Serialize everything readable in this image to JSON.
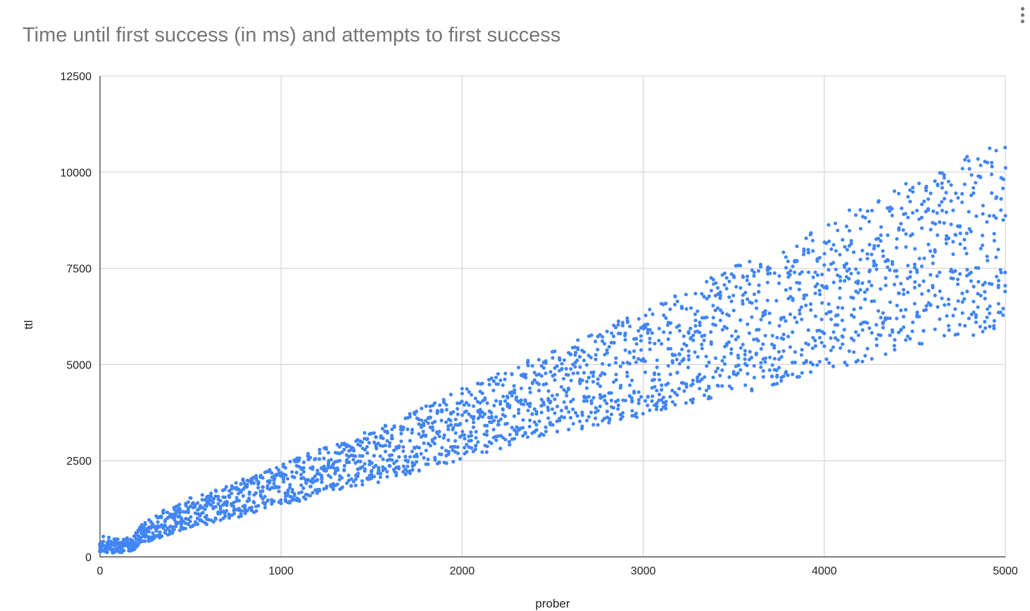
{
  "chart": {
    "title": "Time until first success (in ms) and attempts to first success",
    "menu_icon": "more-vert-icon"
  },
  "chart_data": {
    "type": "scatter",
    "title": "Time until first success (in ms) and attempts to first success",
    "xlabel": "prober",
    "ylabel": "ttl",
    "xlim": [
      0,
      5000
    ],
    "ylim": [
      0,
      12500
    ],
    "xticks": [
      "0",
      "1000",
      "2000",
      "3000",
      "4000",
      "5000"
    ],
    "yticks": [
      "0",
      "2500",
      "5000",
      "7500",
      "10000",
      "12500"
    ],
    "grid": true,
    "legend": "none",
    "series": [
      {
        "color": "#4285f4",
        "description_of_band": "points follow a widening band; lower edge ≈ 1.2·x, upper edge ≈ 2.2·x",
        "x": [
          0,
          10,
          20,
          30,
          40,
          50,
          60,
          80,
          100,
          120,
          150,
          180,
          200,
          220,
          250,
          280,
          300,
          330,
          360,
          400,
          430,
          460,
          500,
          540,
          580,
          600,
          640,
          680,
          700,
          740,
          780,
          800,
          850,
          900,
          950,
          1000,
          1050,
          1100,
          1150,
          1200,
          1250,
          1300,
          1350,
          1400,
          1450,
          1500,
          1550,
          1600,
          1650,
          1700,
          1750,
          1800,
          1850,
          1900,
          1950,
          2000,
          2050,
          2100,
          2150,
          2200,
          2250,
          2300,
          2350,
          2400,
          2450,
          2500,
          2550,
          2600,
          2650,
          2700,
          2750,
          2800,
          2850,
          2900,
          2950,
          3000,
          3050,
          3100,
          3150,
          3200,
          3250,
          3300,
          3350,
          3400,
          3450,
          3500,
          3550,
          3600,
          3650,
          3700,
          3750,
          3800,
          3850,
          3900,
          3950,
          4000,
          4050,
          4100,
          4150,
          4200,
          4250,
          4300,
          4350,
          4400,
          4450,
          4500,
          4550,
          4600,
          4650,
          4700,
          4750,
          4800,
          4850,
          4900,
          4950,
          5000
        ],
        "y_min": [
          100,
          120,
          100,
          110,
          100,
          120,
          100,
          110,
          120,
          110,
          140,
          150,
          200,
          320,
          380,
          420,
          450,
          500,
          560,
          600,
          650,
          680,
          700,
          750,
          800,
          850,
          900,
          950,
          980,
          1000,
          1050,
          1100,
          1150,
          1250,
          1300,
          1350,
          1400,
          1450,
          1500,
          1550,
          1650,
          1700,
          1750,
          1800,
          1850,
          1900,
          1950,
          2050,
          2100,
          2150,
          2200,
          2300,
          2350,
          2400,
          2450,
          2550,
          2600,
          2650,
          2700,
          2750,
          2850,
          2950,
          3050,
          3100,
          3150,
          3150,
          3200,
          3250,
          3300,
          3350,
          3400,
          3450,
          3500,
          3550,
          3600,
          3650,
          3700,
          3750,
          3800,
          3850,
          3900,
          4000,
          4050,
          4100,
          4150,
          4200,
          4250,
          4300,
          4400,
          4450,
          4500,
          4550,
          4650,
          4700,
          4750,
          4850,
          4900,
          4950,
          5000,
          5050,
          5100,
          5200,
          5250,
          5300,
          5350,
          5400,
          5450,
          5500,
          5550,
          5600,
          5650,
          5700,
          5800,
          5850,
          5900,
          6000
        ],
        "y_max": [
          500,
          400,
          550,
          400,
          450,
          520,
          420,
          500,
          550,
          480,
          500,
          450,
          700,
          800,
          950,
          1000,
          1100,
          1200,
          1250,
          1300,
          1350,
          1400,
          1550,
          1600,
          1650,
          1700,
          1750,
          1800,
          1850,
          1900,
          2000,
          2050,
          2100,
          2200,
          2300,
          2400,
          2500,
          2600,
          2700,
          2800,
          2850,
          2900,
          3000,
          3100,
          3200,
          3300,
          3400,
          3550,
          3650,
          3700,
          3800,
          3950,
          4050,
          4150,
          4250,
          4400,
          4500,
          4600,
          4700,
          4800,
          4900,
          5000,
          5100,
          5200,
          5300,
          5400,
          5500,
          5600,
          5700,
          5800,
          5900,
          6000,
          6100,
          6200,
          6300,
          6400,
          6500,
          6600,
          6750,
          6850,
          6950,
          7100,
          7200,
          7350,
          7450,
          7550,
          7650,
          7750,
          7850,
          8000,
          8100,
          8200,
          8300,
          8400,
          8500,
          8650,
          8800,
          8900,
          9050,
          9150,
          9250,
          9400,
          9500,
          9600,
          9700,
          9850,
          9950,
          10000,
          10100,
          10200,
          10300,
          10450,
          10500,
          10600,
          10750,
          10650
        ],
        "point_count_per_column": 6
      }
    ]
  }
}
